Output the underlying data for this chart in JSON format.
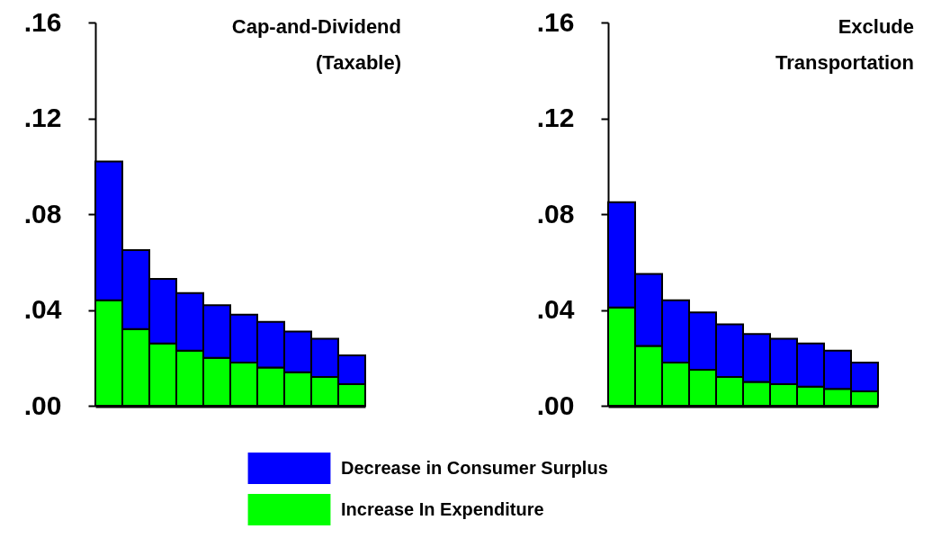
{
  "chart_data": [
    {
      "type": "bar",
      "title": "Cap-and-Dividend (Taxable)",
      "stacked": true,
      "legend": "bottom",
      "tick_labels": "y",
      "categories": [
        null,
        null,
        null,
        null,
        null,
        null,
        null,
        null,
        null,
        null
      ],
      "series": [
        {
          "name": "Increase In Expenditure",
          "color": "#00ff00",
          "values": [
            0.044,
            0.032,
            0.026,
            0.023,
            0.02,
            0.018,
            0.016,
            0.014,
            0.012,
            0.009
          ]
        },
        {
          "name": "Decrease in Consumer Surplus",
          "color": "#0000ff",
          "values": [
            0.058,
            0.033,
            0.027,
            0.024,
            0.022,
            0.02,
            0.019,
            0.017,
            0.016,
            0.012
          ]
        }
      ],
      "ylim": [
        0,
        0.16
      ],
      "yticks": [
        {
          "value": 0,
          "label": ".00"
        },
        {
          "value": 0.04,
          "label": ".04"
        },
        {
          "value": 0.08,
          "label": ".08"
        },
        {
          "value": 0.12,
          "label": ".12"
        },
        {
          "value": 0.16,
          "label": ".16"
        }
      ]
    },
    {
      "type": "bar",
      "title": "Exclude Transportation",
      "stacked": true,
      "tick_labels": "y",
      "categories": [
        null,
        null,
        null,
        null,
        null,
        null,
        null,
        null,
        null,
        null
      ],
      "series": [
        {
          "color": "#00ff00",
          "values": [
            0.041,
            0.025,
            0.018,
            0.015,
            0.012,
            0.01,
            0.009,
            0.008,
            0.007,
            0.006
          ]
        },
        {
          "color": "#0000ff",
          "values": [
            0.044,
            0.03,
            0.026,
            0.024,
            0.022,
            0.02,
            0.019,
            0.018,
            0.016,
            0.012
          ]
        }
      ],
      "ylim": [
        0,
        0.16
      ],
      "yticks": [
        {
          "value": 0,
          "label": ".00"
        },
        {
          "value": 0.04,
          "label": ".04"
        },
        {
          "value": 0.08,
          "label": ".08"
        },
        {
          "value": 0.12,
          "label": ".12"
        },
        {
          "value": 0.16,
          "label": ".16"
        }
      ]
    }
  ]
}
